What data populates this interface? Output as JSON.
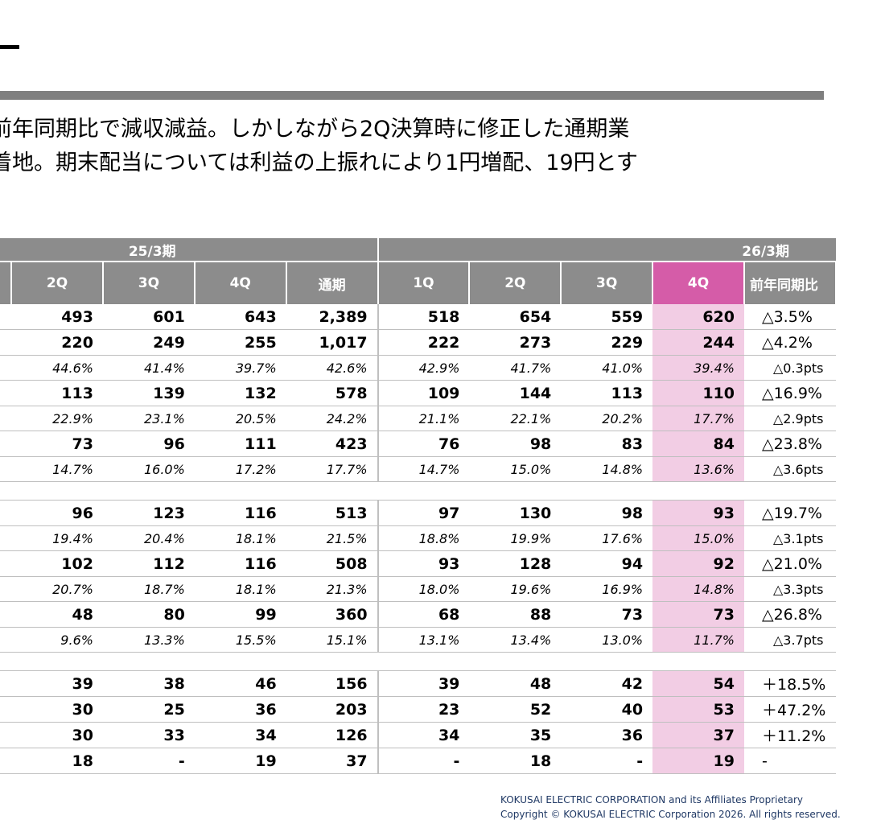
{
  "summary": {
    "line1": "前年同期比で減収減益。しかしながら2Q決算時に修正した通期業",
    "line2": "着地。期末配当については利益の上振れにより1円増配、19円とす"
  },
  "table": {
    "periods": [
      "25/3期",
      "26/3期"
    ],
    "columns": [
      "2Q",
      "3Q",
      "4Q",
      "通期",
      "1Q",
      "2Q",
      "3Q",
      "4Q",
      "前年同期比"
    ],
    "rows": [
      {
        "kind": "val",
        "cells": [
          "493",
          "601",
          "643",
          "2,389",
          "518",
          "654",
          "559",
          "620",
          "△3.5%"
        ]
      },
      {
        "kind": "val",
        "cells": [
          "220",
          "249",
          "255",
          "1,017",
          "222",
          "273",
          "229",
          "244",
          "△4.2%"
        ]
      },
      {
        "kind": "pct",
        "cells": [
          "44.6%",
          "41.4%",
          "39.7%",
          "42.6%",
          "42.9%",
          "41.7%",
          "41.0%",
          "39.4%",
          "△0.3pts"
        ]
      },
      {
        "kind": "val",
        "cells": [
          "113",
          "139",
          "132",
          "578",
          "109",
          "144",
          "113",
          "110",
          "△16.9%"
        ]
      },
      {
        "kind": "pct",
        "cells": [
          "22.9%",
          "23.1%",
          "20.5%",
          "24.2%",
          "21.1%",
          "22.1%",
          "20.2%",
          "17.7%",
          "△2.9pts"
        ]
      },
      {
        "kind": "val",
        "cells": [
          "73",
          "96",
          "111",
          "423",
          "76",
          "98",
          "83",
          "84",
          "△23.8%"
        ]
      },
      {
        "kind": "pct",
        "cells": [
          "14.7%",
          "16.0%",
          "17.2%",
          "17.7%",
          "14.7%",
          "15.0%",
          "14.8%",
          "13.6%",
          "△3.6pts"
        ]
      },
      {
        "kind": "gap",
        "cells": []
      },
      {
        "kind": "val",
        "cells": [
          "96",
          "123",
          "116",
          "513",
          "97",
          "130",
          "98",
          "93",
          "△19.7%"
        ]
      },
      {
        "kind": "pct",
        "cells": [
          "19.4%",
          "20.4%",
          "18.1%",
          "21.5%",
          "18.8%",
          "19.9%",
          "17.6%",
          "15.0%",
          "△3.1pts"
        ]
      },
      {
        "kind": "val",
        "cells": [
          "102",
          "112",
          "116",
          "508",
          "93",
          "128",
          "94",
          "92",
          "△21.0%"
        ]
      },
      {
        "kind": "pct",
        "cells": [
          "20.7%",
          "18.7%",
          "18.1%",
          "21.3%",
          "18.0%",
          "19.6%",
          "16.9%",
          "14.8%",
          "△3.3pts"
        ]
      },
      {
        "kind": "val",
        "cells": [
          "48",
          "80",
          "99",
          "360",
          "68",
          "88",
          "73",
          "73",
          "△26.8%"
        ]
      },
      {
        "kind": "pct",
        "cells": [
          "9.6%",
          "13.3%",
          "15.5%",
          "15.1%",
          "13.1%",
          "13.4%",
          "13.0%",
          "11.7%",
          "△3.7pts"
        ]
      },
      {
        "kind": "gap",
        "cells": []
      },
      {
        "kind": "val",
        "cells": [
          "39",
          "38",
          "46",
          "156",
          "39",
          "48",
          "42",
          "54",
          "＋18.5%"
        ]
      },
      {
        "kind": "val",
        "cells": [
          "30",
          "25",
          "36",
          "203",
          "23",
          "52",
          "40",
          "53",
          "＋47.2%"
        ]
      },
      {
        "kind": "val",
        "cells": [
          "30",
          "33",
          "34",
          "126",
          "34",
          "35",
          "36",
          "37",
          "＋11.2%"
        ]
      },
      {
        "kind": "val",
        "cells": [
          "18",
          "-",
          "19",
          "37",
          "-",
          "18",
          "-",
          "19",
          "-"
        ]
      }
    ]
  },
  "footer": {
    "line1": "KOKUSAI ELECTRIC CORPORATION and its Affiliates Proprietary",
    "line2": "Copyright © KOKUSAI ELECTRIC Corporation 2026. All rights reserved."
  },
  "colors": {
    "header_gray": "#8c8c8c",
    "highlight_header": "#d55ca8",
    "highlight_cell": "#f2cde4",
    "footer_text": "#1f3864"
  }
}
